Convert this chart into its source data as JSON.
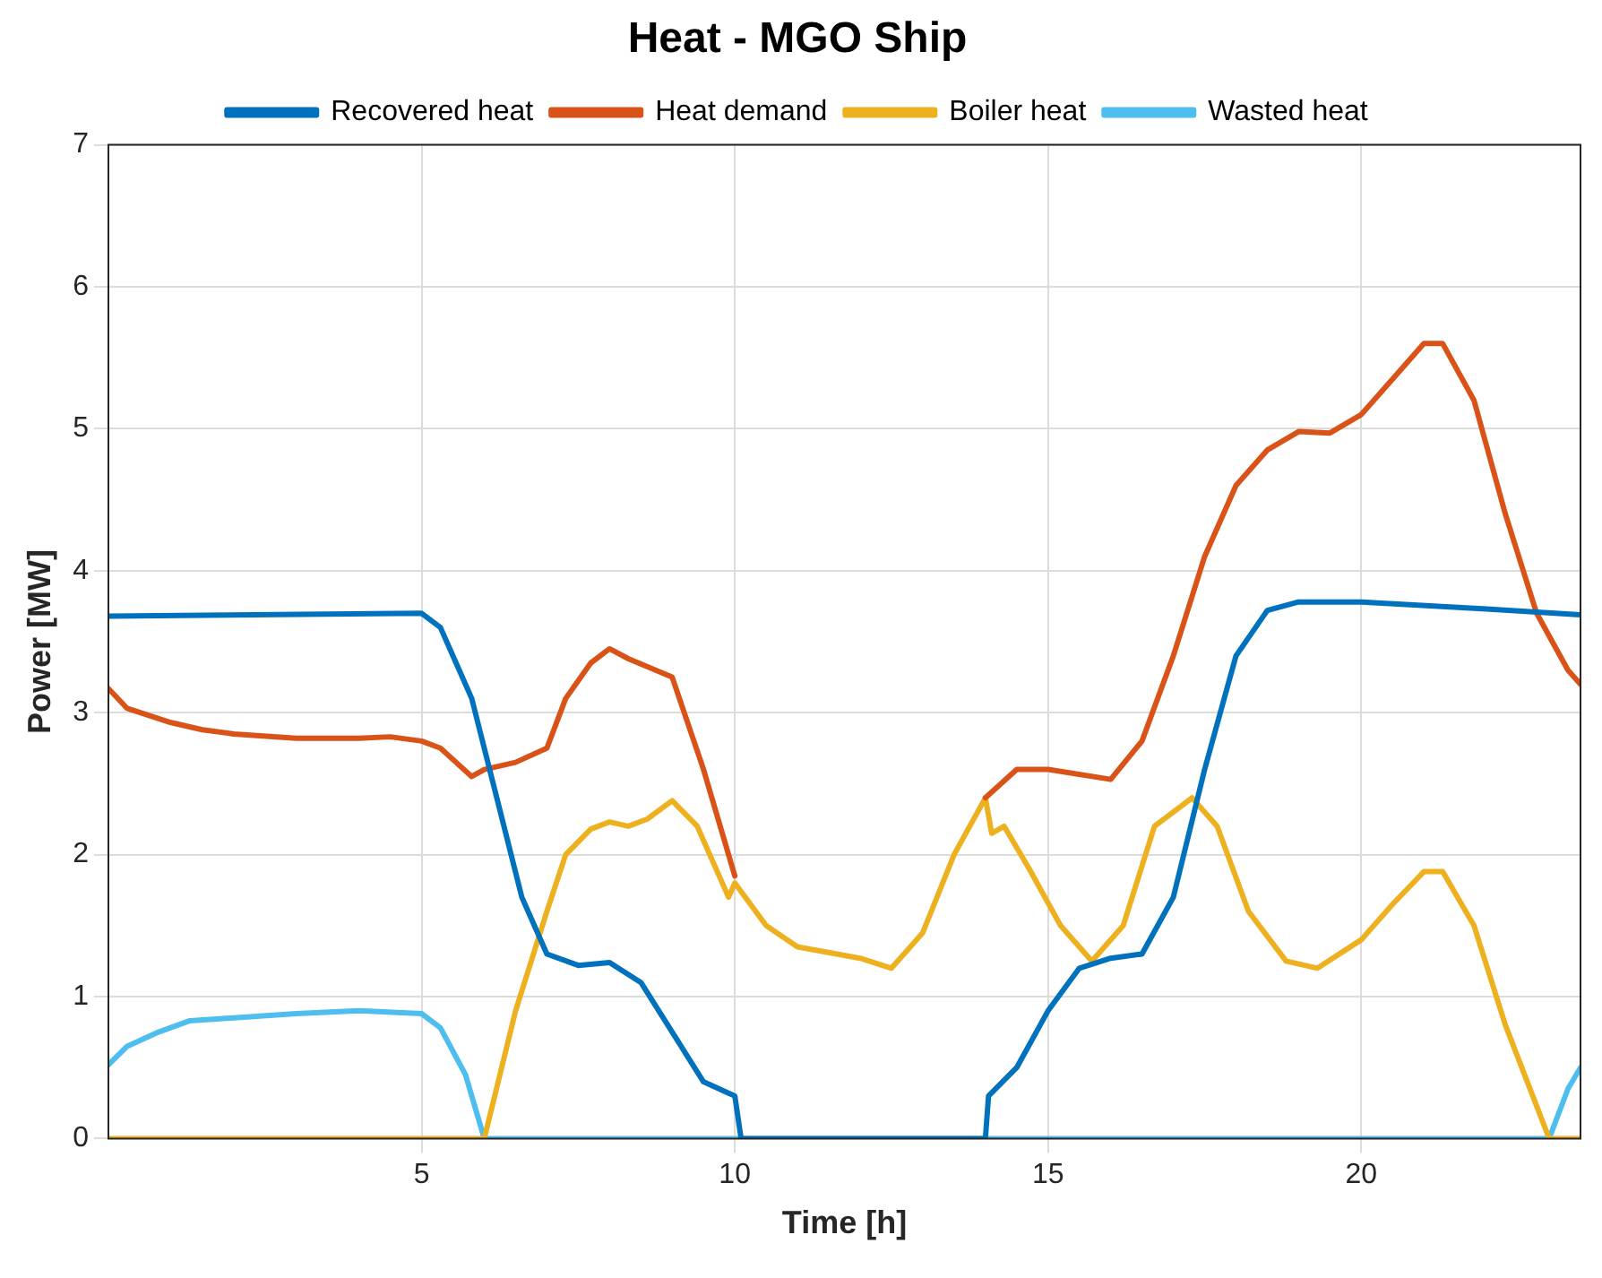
{
  "chart_data": {
    "type": "line",
    "title": "Heat - MGO Ship",
    "xlabel": "Time [h]",
    "ylabel": "Power [MW]",
    "xlim": [
      0,
      23.5
    ],
    "xticks": [
      5,
      10,
      15,
      20
    ],
    "ylim": [
      0,
      7
    ],
    "yticks": [
      0,
      1,
      2,
      3,
      4,
      5,
      6,
      7
    ],
    "grid": true,
    "legend": "top",
    "marker": "none",
    "line_style": "solid",
    "series": [
      {
        "name": "Recovered heat",
        "color": "#0072bd",
        "x": [
          0,
          5,
          5.3,
          5.8,
          6.2,
          6.6,
          7,
          7.5,
          8,
          8.5,
          9,
          9.5,
          9.9,
          10,
          10.1,
          14,
          14.05,
          14.5,
          15,
          15.5,
          16,
          16.5,
          17,
          17.5,
          18,
          18.5,
          19,
          20,
          22,
          23.5
        ],
        "values": [
          3.68,
          3.7,
          3.6,
          3.1,
          2.4,
          1.7,
          1.3,
          1.22,
          1.24,
          1.1,
          0.75,
          0.4,
          0.32,
          0.3,
          0,
          0,
          0.3,
          0.5,
          0.9,
          1.2,
          1.27,
          1.3,
          1.7,
          2.6,
          3.4,
          3.72,
          3.78,
          3.78,
          3.73,
          3.69
        ]
      },
      {
        "name": "Heat demand",
        "color": "#d95319",
        "x": [
          0,
          0.3,
          1,
          1.5,
          2,
          3,
          4,
          4.5,
          5,
          5.3,
          5.8,
          6,
          6.5,
          7,
          7.3,
          7.7,
          8,
          8.3,
          9,
          9.5,
          10,
          12,
          14,
          14.5,
          15,
          16,
          16.5,
          17,
          17.5,
          18,
          18.5,
          19,
          19.5,
          20,
          20.5,
          21,
          21.3,
          21.8,
          22.3,
          22.8,
          23.3,
          23.5
        ],
        "values": [
          3.17,
          3.03,
          2.93,
          2.88,
          2.85,
          2.82,
          2.82,
          2.83,
          2.8,
          2.75,
          2.55,
          2.6,
          2.65,
          2.75,
          3.1,
          3.35,
          3.45,
          3.38,
          3.25,
          2.6,
          1.85,
          null,
          2.4,
          2.6,
          2.6,
          2.53,
          2.8,
          3.4,
          4.1,
          4.6,
          4.85,
          4.98,
          4.97,
          5.1,
          5.35,
          5.6,
          5.6,
          5.2,
          4.4,
          3.7,
          3.3,
          3.2
        ]
      },
      {
        "name": "Boiler heat",
        "color": "#edb120",
        "x": [
          0,
          6,
          6.5,
          7,
          7.3,
          7.7,
          8,
          8.3,
          8.6,
          9,
          9.4,
          9.9,
          10,
          10.5,
          11,
          12,
          12.5,
          13,
          13.5,
          14,
          14.1,
          14.3,
          14.7,
          15.2,
          15.7,
          16.2,
          16.7,
          17.3,
          17.7,
          18.2,
          18.8,
          19.3,
          20,
          20.5,
          21,
          21.3,
          21.8,
          22.3,
          23,
          23.5
        ],
        "values": [
          0,
          0,
          0.9,
          1.6,
          2,
          2.18,
          2.23,
          2.2,
          2.25,
          2.38,
          2.2,
          1.7,
          1.8,
          1.5,
          1.35,
          1.27,
          1.2,
          1.45,
          2,
          2.4,
          2.15,
          2.2,
          1.9,
          1.5,
          1.25,
          1.5,
          2.2,
          2.4,
          2.2,
          1.6,
          1.25,
          1.2,
          1.4,
          1.65,
          1.88,
          1.88,
          1.5,
          0.8,
          0,
          0
        ]
      },
      {
        "name": "Wasted heat",
        "color": "#4dbeee",
        "x": [
          0,
          0.3,
          0.8,
          1.3,
          2,
          3,
          4,
          5,
          5.3,
          5.7,
          6,
          23,
          23.3,
          23.5
        ],
        "values": [
          0.52,
          0.65,
          0.75,
          0.83,
          0.85,
          0.88,
          0.9,
          0.88,
          0.78,
          0.45,
          0,
          0,
          0.35,
          0.5
        ]
      }
    ]
  }
}
